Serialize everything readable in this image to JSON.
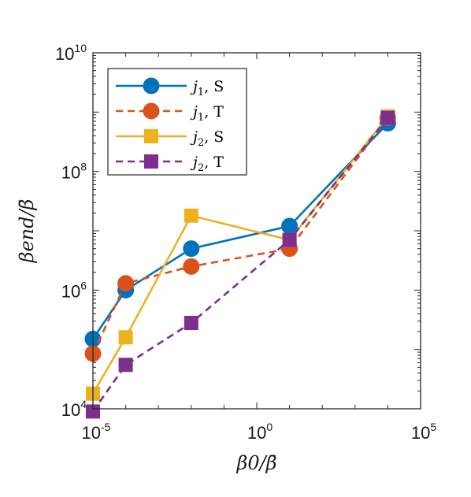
{
  "chart_data": {
    "type": "line",
    "xlabel": "β0/β̄",
    "ylabel": "βend/β̄",
    "xscale": "log",
    "yscale": "log",
    "xlim": [
      1e-05,
      100000.0
    ],
    "ylim": [
      10000.0,
      10000000000.0
    ],
    "x_ticks": [
      {
        "value": 1e-05,
        "base": "10",
        "exp": "-5"
      },
      {
        "value": 1.0,
        "base": "10",
        "exp": "0"
      },
      {
        "value": 100000.0,
        "base": "10",
        "exp": "5"
      }
    ],
    "y_ticks": [
      {
        "value": 10000.0,
        "base": "10",
        "exp": "4"
      },
      {
        "value": 1000000.0,
        "base": "10",
        "exp": "6"
      },
      {
        "value": 100000000.0,
        "base": "10",
        "exp": "8"
      },
      {
        "value": 10000000000.0,
        "base": "10",
        "exp": "10"
      }
    ],
    "legend_position": "top-left",
    "series": [
      {
        "name": "j1, S",
        "label_var": "j",
        "label_sub": "1",
        "label_suffix": ", S",
        "color": "#0072BD",
        "marker": "circle",
        "dash": "solid",
        "x": [
          1e-05,
          0.0001,
          0.01,
          10,
          10000
        ],
        "y": [
          150000,
          1000000,
          5000000,
          12000000,
          650000000
        ]
      },
      {
        "name": "j1, T",
        "label_var": "j",
        "label_sub": "1",
        "label_suffix": ", T",
        "color": "#D95319",
        "marker": "circle",
        "dash": "dashed",
        "x": [
          1e-05,
          0.0001,
          0.01,
          10,
          10000
        ],
        "y": [
          85000,
          1300000,
          2500000,
          5000000,
          800000000
        ]
      },
      {
        "name": "j2, S",
        "label_var": "j",
        "label_sub": "2",
        "label_suffix": ", S",
        "color": "#EDB120",
        "marker": "square",
        "dash": "solid",
        "x": [
          1e-05,
          0.0001,
          0.01,
          10,
          10000
        ],
        "y": [
          18000,
          160000,
          18000000,
          7000000,
          850000000
        ]
      },
      {
        "name": "j2, T",
        "label_var": "j",
        "label_sub": "2",
        "label_suffix": ", T",
        "color": "#7E2F8E",
        "marker": "square",
        "dash": "dashed",
        "x": [
          1e-05,
          0.0001,
          0.01,
          10,
          10000
        ],
        "y": [
          9000,
          55000,
          280000,
          7000000,
          800000000
        ]
      }
    ]
  }
}
